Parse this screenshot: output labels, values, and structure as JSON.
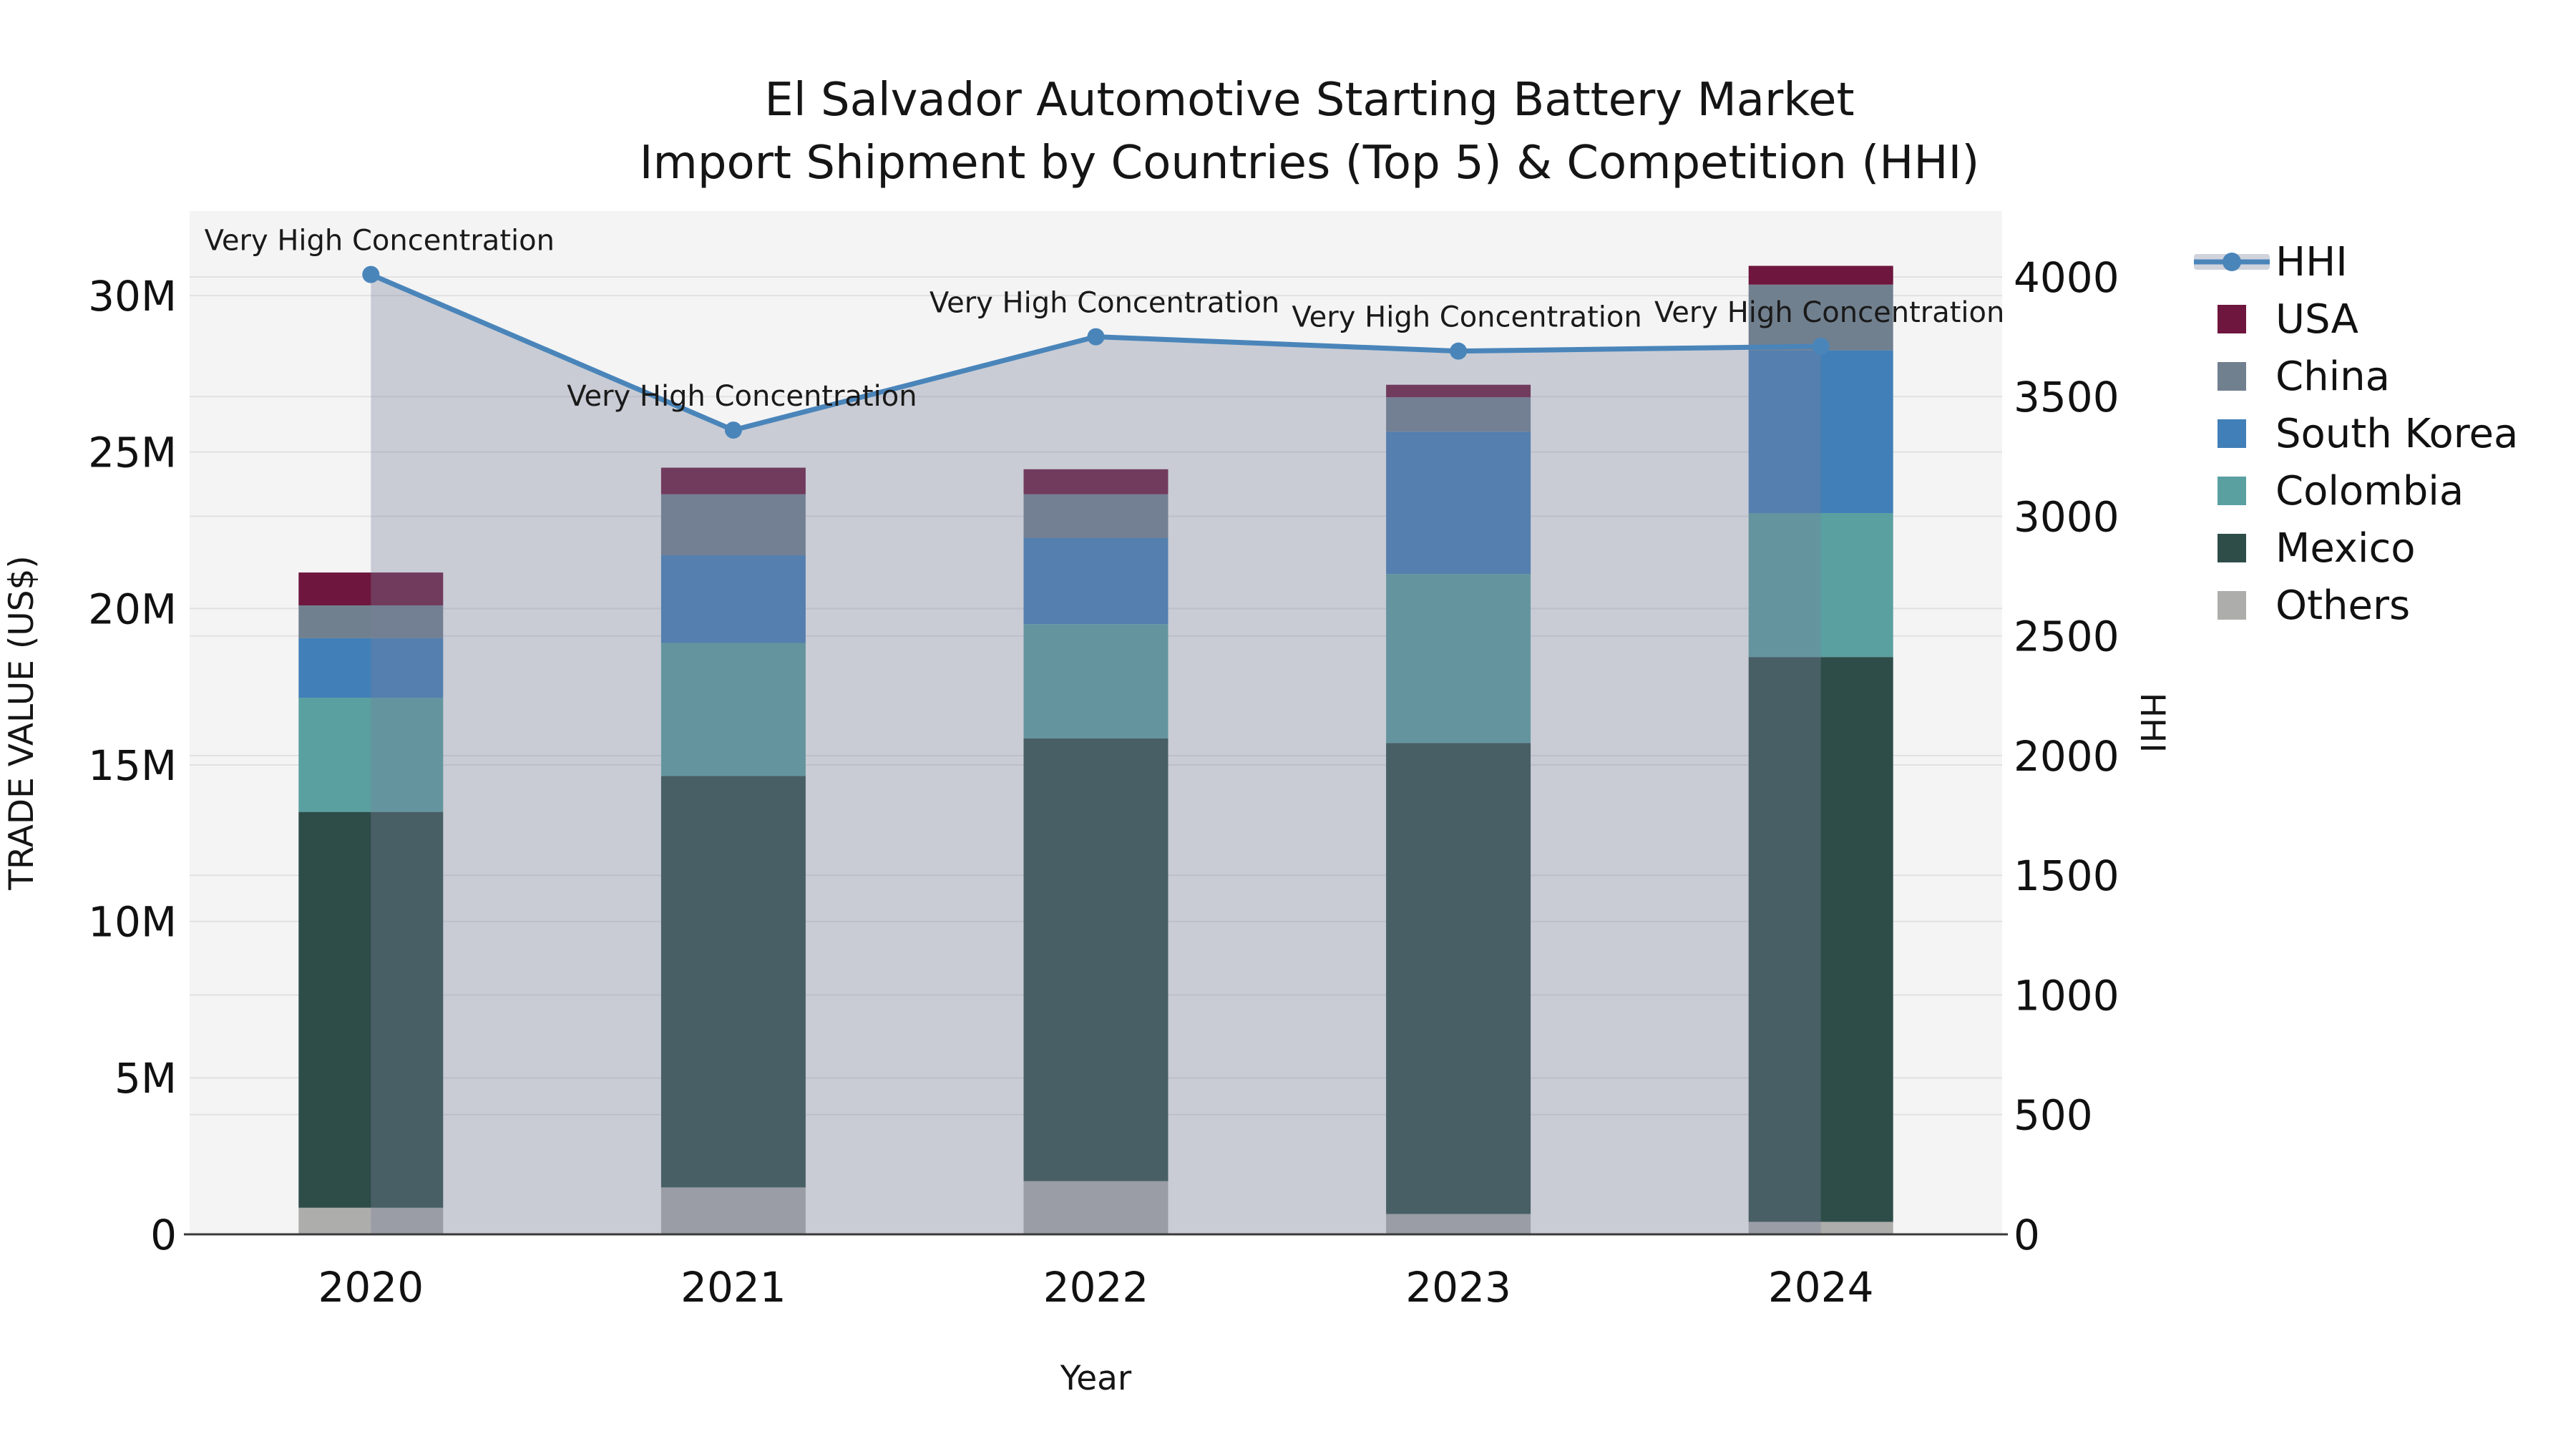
{
  "title": {
    "line1": "El Salvador Automotive Starting Battery Market",
    "line2": "Import Shipment by Countries (Top 5) & Competition (HHI)"
  },
  "colors": {
    "figure_bg": "#ffffff",
    "plot_bg": "#f4f4f4",
    "grid": "#e1e1e4",
    "axis_line": "#3a3a3a",
    "text": "#151515",
    "hhi_line": "#4a85ba",
    "hhi_area": "rgba(121,130,155,0.35)",
    "legend_band": "#d0d3dc"
  },
  "legend": [
    {
      "label": "HHI",
      "type": "line",
      "color": "#4a85ba"
    },
    {
      "label": "USA",
      "type": "swatch",
      "color": "#6e163d"
    },
    {
      "label": "China",
      "type": "swatch",
      "color": "#71808f"
    },
    {
      "label": "South Korea",
      "type": "swatch",
      "color": "#417fb8"
    },
    {
      "label": "Colombia",
      "type": "swatch",
      "color": "#5aa0a1"
    },
    {
      "label": "Mexico",
      "type": "swatch",
      "color": "#2e4d49"
    },
    {
      "label": "Others",
      "type": "swatch",
      "color": "#adadab"
    }
  ],
  "chart_data": {
    "type": "bar+line",
    "title": "El Salvador Automotive Starting Battery Market — Import Shipment by Countries (Top 5) & Competition (HHI)",
    "categories": [
      "2020",
      "2021",
      "2022",
      "2023",
      "2024"
    ],
    "x_title": "Year",
    "bar_unit": "millions US$",
    "series": [
      {
        "name": "Others",
        "color": "#adadab",
        "values": [
          0.85,
          1.5,
          1.7,
          0.65,
          0.4
        ]
      },
      {
        "name": "Mexico",
        "color": "#2e4d49",
        "values": [
          12.65,
          13.15,
          14.15,
          15.05,
          18.05
        ]
      },
      {
        "name": "Colombia",
        "color": "#5aa0a1",
        "values": [
          3.65,
          4.25,
          3.65,
          5.4,
          4.6
        ]
      },
      {
        "name": "South Korea",
        "color": "#417fb8",
        "values": [
          1.9,
          2.8,
          2.75,
          4.55,
          5.2
        ]
      },
      {
        "name": "China",
        "color": "#71808f",
        "values": [
          1.05,
          1.95,
          1.4,
          1.1,
          2.1
        ]
      },
      {
        "name": "USA",
        "color": "#6e163d",
        "values": [
          1.05,
          0.85,
          0.8,
          0.4,
          0.6
        ]
      }
    ],
    "bar_totals_millions": [
      21.15,
      24.5,
      24.45,
      27.15,
      30.95
    ],
    "line_series": {
      "name": "HHI",
      "values": [
        4010,
        3360,
        3750,
        3690,
        3710
      ],
      "has_area_fill": true
    },
    "annotations": [
      "Very High Concentration",
      "Very High Concentration",
      "Very High Concentration",
      "Very High Concentration",
      "Very High Concentration"
    ],
    "y_left": {
      "title": "TRADE VALUE (US$)",
      "tick_values": [
        0,
        5,
        10,
        15,
        20,
        25,
        30
      ],
      "tick_labels": [
        "0",
        "5M",
        "10M",
        "15M",
        "20M",
        "25M",
        "30M"
      ],
      "axis_max": 32.7
    },
    "y_right": {
      "title": "HHI",
      "tick_values": [
        0,
        500,
        1000,
        1500,
        2000,
        2500,
        3000,
        3500,
        4000
      ],
      "tick_labels": [
        "0",
        "500",
        "1000",
        "1500",
        "2000",
        "2500",
        "3000",
        "3500",
        "4000"
      ],
      "axis_max": 4275
    },
    "grid": true,
    "legend_position": "right"
  }
}
